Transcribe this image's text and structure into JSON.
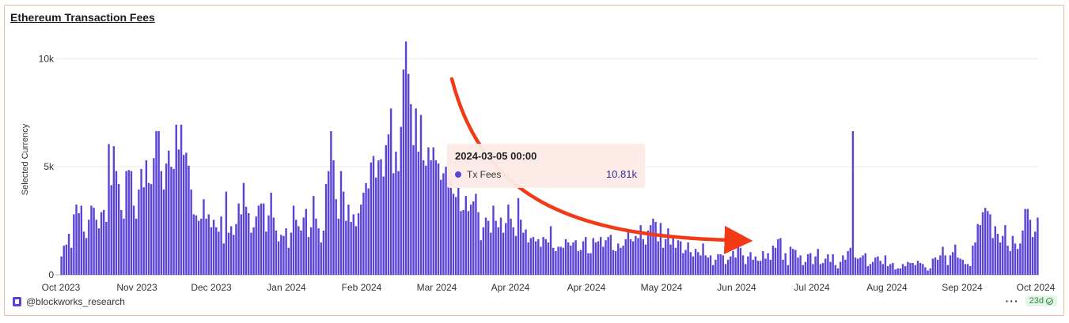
{
  "title": "Ethereum Transaction Fees",
  "chart_data": {
    "type": "bar",
    "ylabel": "Selected Currency",
    "ylim": [
      0,
      11000
    ],
    "y_ticks": [
      {
        "value": 0,
        "label": "0"
      },
      {
        "value": 5000,
        "label": "5k"
      },
      {
        "value": 10000,
        "label": "10k"
      }
    ],
    "x_ticks": [
      "Oct 2023",
      "Nov 2023",
      "Dec 2023",
      "Jan 2024",
      "Feb 2024",
      "Mar 2024",
      "Apr 2024",
      "Apr 2024",
      "May 2024",
      "Jun 2024",
      "Jul 2024",
      "Aug 2024",
      "Sep 2024",
      "Oct 2024"
    ],
    "grid": true,
    "bar_color": "#5b43d6",
    "series": [
      {
        "name": "Tx Fees",
        "values": [
          850,
          1350,
          1400,
          1900,
          1250,
          2800,
          3250,
          2850,
          3200,
          2000,
          1700,
          2550,
          3200,
          3100,
          2550,
          2150,
          2900,
          3000,
          2450,
          6050,
          4150,
          5950,
          4800,
          4200,
          3000,
          2600,
          4800,
          4850,
          4800,
          3200,
          2600,
          3950,
          4900,
          4050,
          5300,
          4250,
          4200,
          5400,
          6650,
          6650,
          4800,
          3950,
          5150,
          5750,
          5000,
          4900,
          6950,
          5800,
          6950,
          5550,
          5650,
          5050,
          3950,
          2800,
          2750,
          2500,
          2600,
          3500,
          2600,
          2800,
          2200,
          2550,
          2200,
          2000,
          2700,
          1450,
          3850,
          1950,
          2250,
          1850,
          2350,
          3300,
          2800,
          4250,
          3150,
          2850,
          1950,
          2200,
          2700,
          3200,
          3300,
          3300,
          2000,
          2750,
          3800,
          2650,
          2050,
          1550,
          1850,
          1800,
          2150,
          1250,
          1950,
          3200,
          2550,
          2250,
          2050,
          2650,
          3050,
          1750,
          2200,
          3650,
          2600,
          2150,
          1500,
          2050,
          4200,
          4800,
          6650,
          5300,
          3500,
          2600,
          4800,
          3850,
          2500,
          3250,
          2450,
          2800,
          2250,
          2850,
          3250,
          3800,
          4250,
          4000,
          5200,
          5500,
          4500,
          5300,
          5350,
          4550,
          6000,
          6500,
          7700,
          4700,
          5700,
          4800,
          6850,
          9500,
          10800,
          9300,
          7900,
          6000,
          7700,
          5700,
          7400,
          5300,
          5050,
          5900,
          5300,
          5900,
          5300,
          5150,
          4400,
          4700,
          5000,
          4500,
          4400,
          3750,
          3600,
          4050,
          2950,
          3000,
          3650,
          2950,
          3250,
          3400,
          3750,
          2900,
          1600,
          2200,
          2650,
          2500,
          1950,
          3200,
          2500,
          2200,
          2650,
          1950,
          2400,
          3250,
          2600,
          2200,
          1800,
          3550,
          2550,
          1950,
          2100,
          1500,
          1700,
          1750,
          1550,
          1650,
          1300,
          1750,
          1650,
          1500,
          2250,
          1250,
          1100,
          1300,
          1300,
          1250,
          1650,
          1500,
          1350,
          1500,
          1600,
          1100,
          1150,
          1550,
          1750,
          1000,
          1000,
          1700,
          1500,
          1550,
          1750,
          1300,
          1600,
          1750,
          1850,
          1150,
          1100,
          1450,
          1250,
          1350,
          1650,
          2100,
          1650,
          1550,
          1800,
          1700,
          2300,
          1650,
          1400,
          2050,
          2300,
          2600,
          2450,
          1550,
          2400,
          1250,
          1650,
          2150,
          1400,
          1800,
          1250,
          1600,
          1550,
          1000,
          1150,
          1500,
          1050,
          850,
          1200,
          1050,
          900,
          1450,
          900,
          800,
          900,
          450,
          700,
          950,
          950,
          900,
          500,
          700,
          850,
          1100,
          800,
          1350,
          1250,
          900,
          500,
          850,
          1050,
          700,
          850,
          650,
          650,
          1100,
          750,
          1000,
          700,
          1350,
          1250,
          1650,
          1700,
          700,
          1000,
          450,
          1300,
          1200,
          1150,
          800,
          900,
          450,
          600,
          950,
          1000,
          500,
          850,
          1200,
          500,
          550,
          750,
          950,
          600,
          950,
          450,
          300,
          600,
          900,
          700,
          1100,
          1250,
          6650,
          800,
          750,
          800,
          900,
          1000,
          400,
          500,
          600,
          800,
          850,
          650,
          500,
          900,
          400,
          500,
          550,
          250,
          300,
          300,
          500,
          400,
          600,
          550,
          550,
          450,
          650,
          550,
          500,
          350,
          200,
          300,
          750,
          800,
          700,
          900,
          1300,
          900,
          450,
          900,
          1050,
          1400,
          800,
          750,
          700,
          500,
          500,
          400,
          1350,
          1500,
          2350,
          2300,
          2900,
          3100,
          2950,
          2800,
          1700,
          2250,
          1900,
          1500,
          1800,
          2300,
          1350,
          1100,
          1800,
          1450,
          1200,
          1450,
          2050,
          3050,
          3050,
          2550,
          1750,
          2000,
          2650
        ]
      }
    ],
    "tooltip": {
      "date": "2024-03-05 00:00",
      "series": "Tx Fees",
      "value": "10.81k"
    }
  },
  "footer": {
    "source": "@blockworks_research",
    "menu": "···",
    "badge": "23d"
  }
}
